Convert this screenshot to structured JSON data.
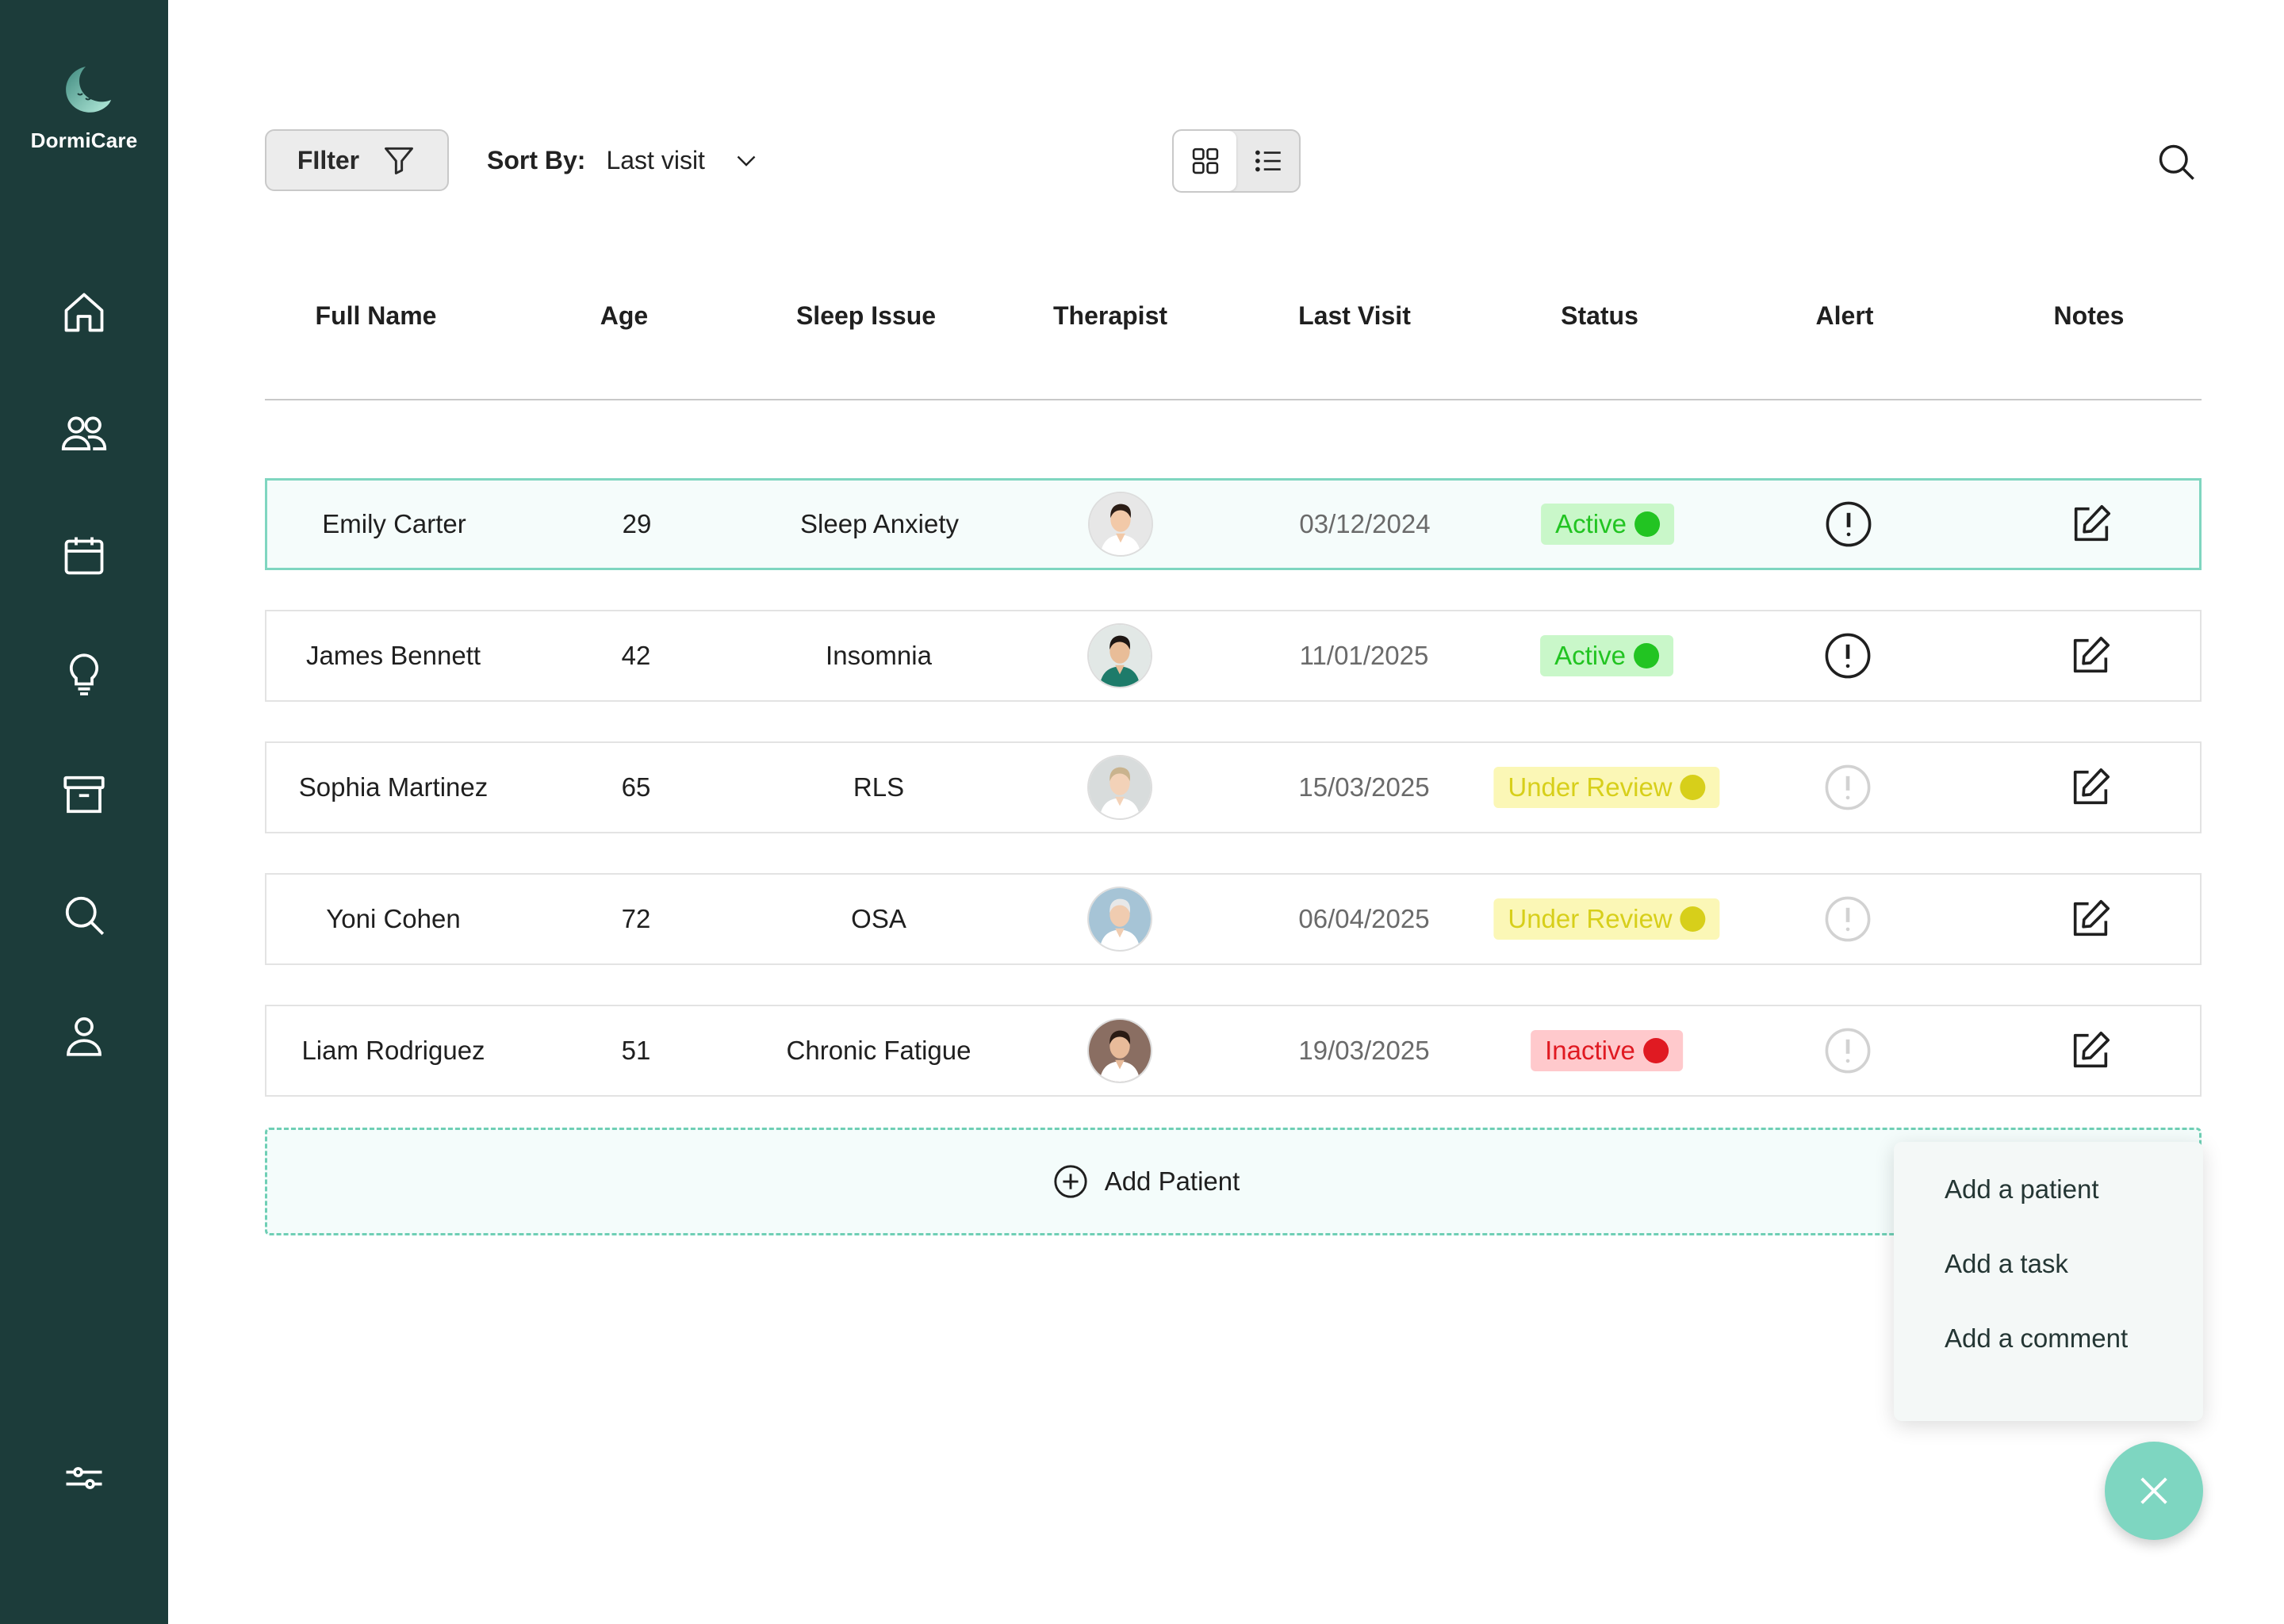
{
  "app": {
    "name": "DormiCare"
  },
  "colors": {
    "sidebar": "#1c3c3a",
    "accent": "#7ed6c1",
    "active": "#22c422",
    "review": "#d7cf1a",
    "inactive": "#e01a22"
  },
  "sidebar": {
    "items": [
      {
        "icon": "home-icon"
      },
      {
        "icon": "users-icon"
      },
      {
        "icon": "calendar-icon"
      },
      {
        "icon": "lightbulb-icon"
      },
      {
        "icon": "archive-icon"
      },
      {
        "icon": "search-icon"
      },
      {
        "icon": "user-icon"
      },
      {
        "icon": "sliders-icon"
      }
    ]
  },
  "toolbar": {
    "filter_label": "FIlter",
    "sort_label": "Sort By:",
    "sort_value": "Last visit",
    "view_modes": [
      "grid",
      "list"
    ],
    "active_view": "grid"
  },
  "table": {
    "headers": [
      "Full Name",
      "Age",
      "Sleep Issue",
      "Therapist",
      "Last Visit",
      "Status",
      "Alert",
      "Notes"
    ],
    "rows": [
      {
        "name": "Emily Carter",
        "age": "29",
        "issue": "Sleep Anxiety",
        "therapist": "female-therapist-1",
        "last_visit": "03/12/2024",
        "status": "Active",
        "status_type": "active",
        "alert": true,
        "selected": true
      },
      {
        "name": "James Bennett",
        "age": "42",
        "issue": "Insomnia",
        "therapist": "male-therapist-1",
        "last_visit": "11/01/2025",
        "status": "Active",
        "status_type": "active",
        "alert": true,
        "selected": false
      },
      {
        "name": "Sophia Martinez",
        "age": "65",
        "issue": "RLS",
        "therapist": "female-therapist-2",
        "last_visit": "15/03/2025",
        "status": "Under Review",
        "status_type": "review",
        "alert": false,
        "selected": false
      },
      {
        "name": "Yoni Cohen",
        "age": "72",
        "issue": "OSA",
        "therapist": "male-therapist-2",
        "last_visit": "06/04/2025",
        "status": "Under Review",
        "status_type": "review",
        "alert": false,
        "selected": false
      },
      {
        "name": "Liam Rodriguez",
        "age": "51",
        "issue": "Chronic Fatigue",
        "therapist": "female-therapist-3",
        "last_visit": "19/03/2025",
        "status": "Inactive",
        "status_type": "inactive",
        "alert": false,
        "selected": false
      }
    ]
  },
  "add_patient": {
    "label": "Add Patient"
  },
  "popup": {
    "items": [
      "Add a patient",
      "Add a task",
      "Add a comment"
    ]
  }
}
